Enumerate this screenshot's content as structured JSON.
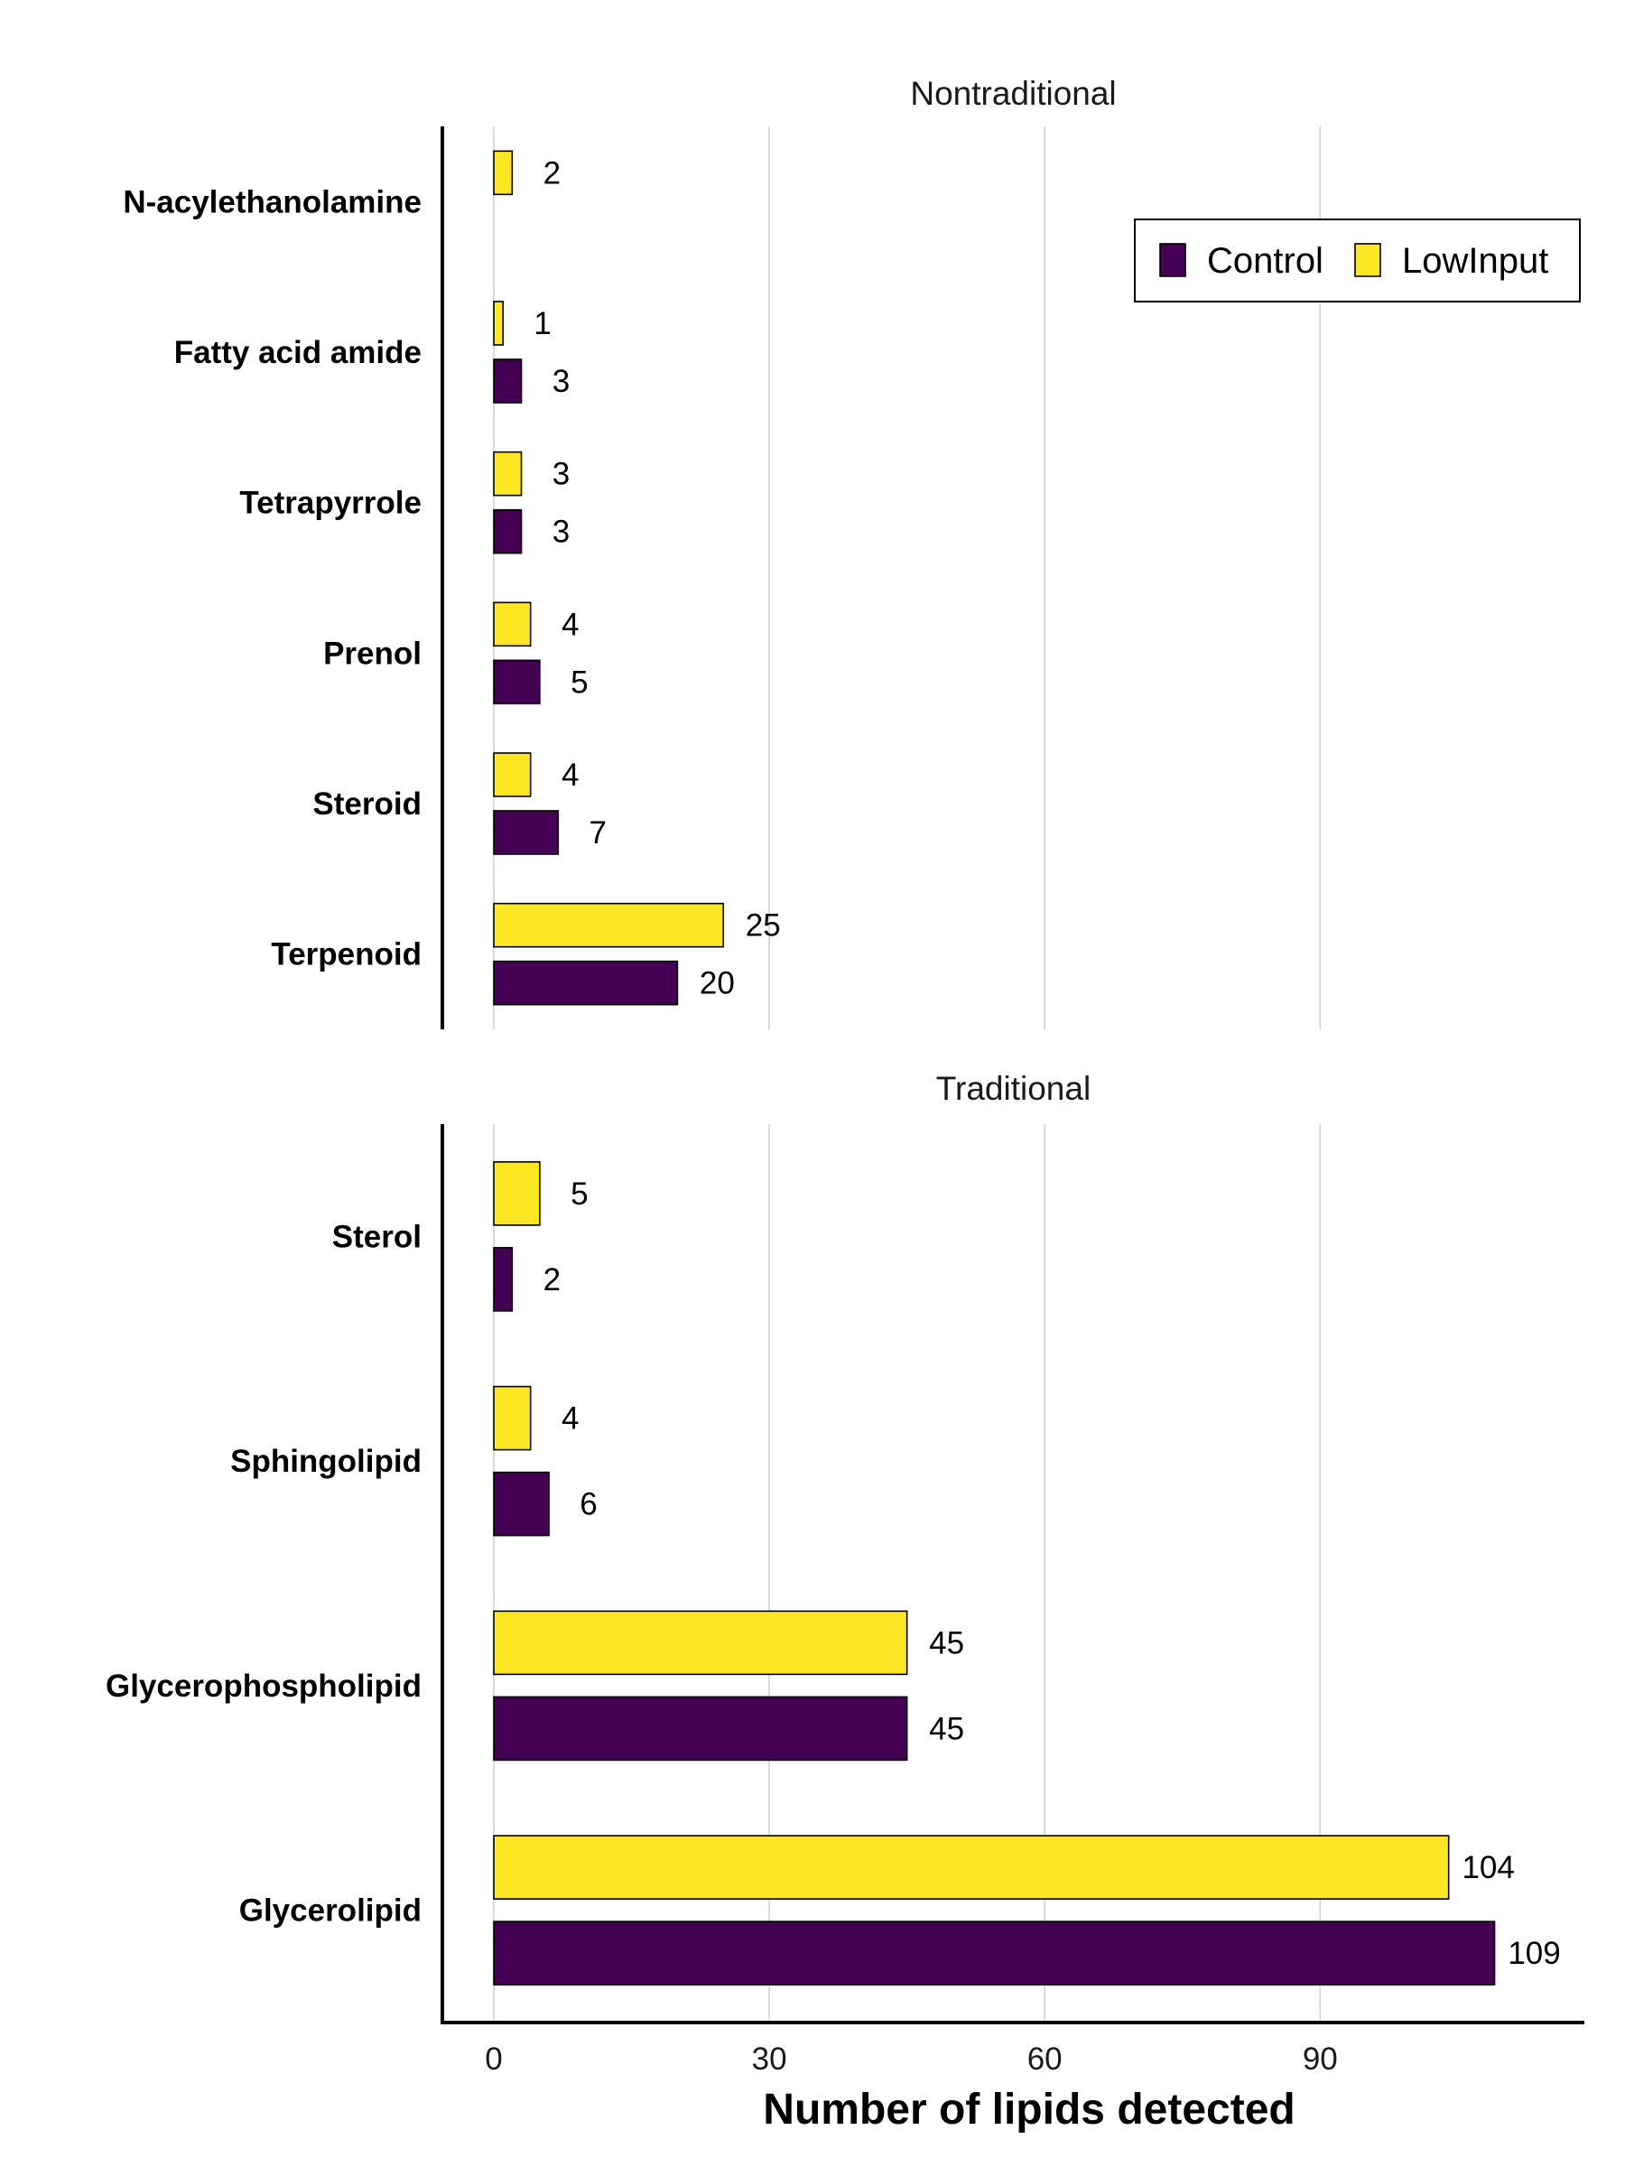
{
  "chart_data": {
    "type": "bar",
    "orientation": "horizontal",
    "xlabel": "Number of lipids detected",
    "xlim": [
      -6,
      118
    ],
    "x_ticks": [
      0,
      30,
      60,
      90
    ],
    "grid": "vertical major gridlines",
    "legend_position": "top-right",
    "series_order": [
      "Control",
      "LowInput"
    ],
    "colors": {
      "Control": "#440154",
      "LowInput": "#FDE725"
    },
    "panels": [
      {
        "name": "Nontraditional",
        "categories": [
          "N-acylethanolamine",
          "Fatty acid amide",
          "Tetrapyrrole",
          "Prenol",
          "Steroid",
          "Terpenoid"
        ],
        "series": [
          {
            "name": "LowInput",
            "values": [
              2,
              1,
              3,
              4,
              4,
              25
            ]
          },
          {
            "name": "Control",
            "values": [
              null,
              3,
              3,
              5,
              7,
              20
            ]
          }
        ]
      },
      {
        "name": "Traditional",
        "categories": [
          "Sterol",
          "Sphingolipid",
          "Glycerophospholipid",
          "Glycerolipid"
        ],
        "series": [
          {
            "name": "LowInput",
            "values": [
              5,
              4,
              45,
              104
            ]
          },
          {
            "name": "Control",
            "values": [
              2,
              6,
              45,
              109
            ]
          }
        ]
      }
    ]
  }
}
